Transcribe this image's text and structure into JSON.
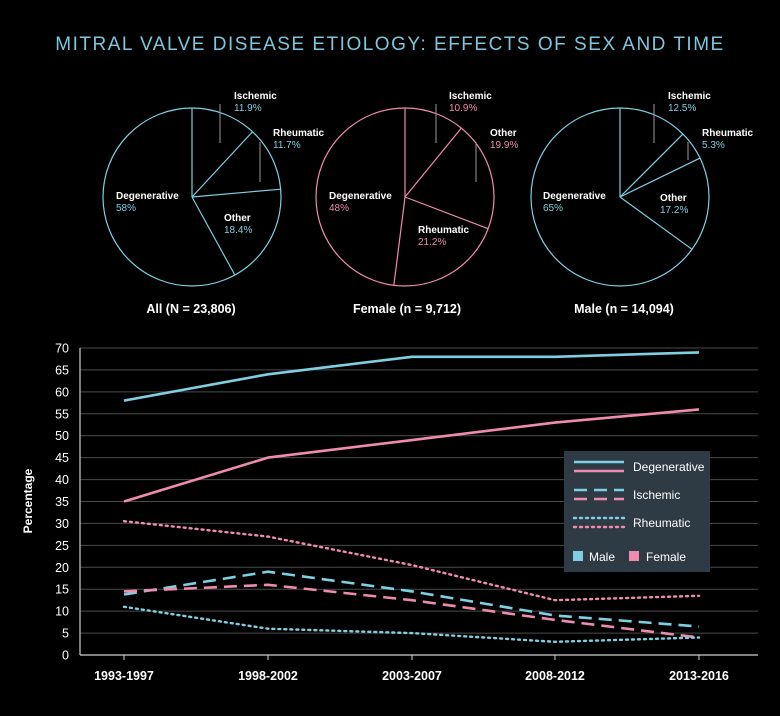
{
  "title": "MITRAL VALVE DISEASE ETIOLOGY: EFFECTS OF SEX AND TIME",
  "colors": {
    "male": "#7fcfe3",
    "female": "#f08bb0",
    "grid": "#4a4a4a",
    "legend_bg": "#2f3b44"
  },
  "chart_data": [
    {
      "type": "pie",
      "caption": "All (N = 23,806)",
      "color": "#7fcfe3",
      "slices": [
        {
          "label": "Ischemic",
          "value": 11.9,
          "display": "11.9%"
        },
        {
          "label": "Rheumatic",
          "value": 11.7,
          "display": "11.7%"
        },
        {
          "label": "Other",
          "value": 18.4,
          "display": "18.4%"
        },
        {
          "label": "Degenerative",
          "value": 58,
          "display": "58%"
        }
      ]
    },
    {
      "type": "pie",
      "caption": "Female (n = 9,712)",
      "color": "#f08bb0",
      "slices": [
        {
          "label": "Ischemic",
          "value": 10.9,
          "display": "10.9%"
        },
        {
          "label": "Other",
          "value": 19.9,
          "display": "19.9%"
        },
        {
          "label": "Rheumatic",
          "value": 21.2,
          "display": "21.2%"
        },
        {
          "label": "Degenerative",
          "value": 48,
          "display": "48%"
        }
      ]
    },
    {
      "type": "pie",
      "caption": "Male (n = 14,094)",
      "color": "#7fcfe3",
      "slices": [
        {
          "label": "Ischemic",
          "value": 12.5,
          "display": "12.5%"
        },
        {
          "label": "Rheumatic",
          "value": 5.3,
          "display": "5.3%"
        },
        {
          "label": "Other",
          "value": 17.2,
          "display": "17.2%"
        },
        {
          "label": "Degenerative",
          "value": 65,
          "display": "65%"
        }
      ]
    },
    {
      "type": "line",
      "ylabel": "Percentage",
      "ylim": [
        0,
        70
      ],
      "yticks": [
        0,
        5,
        10,
        15,
        20,
        25,
        30,
        35,
        40,
        45,
        50,
        55,
        60,
        65,
        70
      ],
      "categories": [
        "1993-1997",
        "1998-2002",
        "2003-2007",
        "2008-2012",
        "2013-2016"
      ],
      "grid": true,
      "legend_position": "right",
      "legend": {
        "styles": [
          {
            "label": "Degenerative",
            "dash": "solid"
          },
          {
            "label": "Ischemic",
            "dash": "dashed"
          },
          {
            "label": "Rheumatic",
            "dash": "dotted"
          }
        ],
        "sexes": [
          {
            "label": "Male",
            "color": "#7fcfe3"
          },
          {
            "label": "Female",
            "color": "#f08bb0"
          }
        ]
      },
      "series": [
        {
          "sex": "Male",
          "etiology": "Degenerative",
          "dash": "solid",
          "values": [
            58,
            64,
            68,
            68,
            69
          ]
        },
        {
          "sex": "Female",
          "etiology": "Degenerative",
          "dash": "solid",
          "values": [
            35,
            45,
            49,
            53,
            56
          ]
        },
        {
          "sex": "Female",
          "etiology": "Rheumatic",
          "dash": "dotted",
          "values": [
            30.5,
            27,
            20.5,
            12.5,
            13.5
          ]
        },
        {
          "sex": "Male",
          "etiology": "Ischemic",
          "dash": "dashed",
          "values": [
            13.8,
            19,
            14.5,
            9,
            6.5
          ]
        },
        {
          "sex": "Female",
          "etiology": "Ischemic",
          "dash": "dashed",
          "values": [
            14.5,
            16,
            12.5,
            8,
            4
          ]
        },
        {
          "sex": "Male",
          "etiology": "Rheumatic",
          "dash": "dotted",
          "values": [
            11,
            6,
            5,
            3,
            4
          ]
        }
      ]
    }
  ]
}
